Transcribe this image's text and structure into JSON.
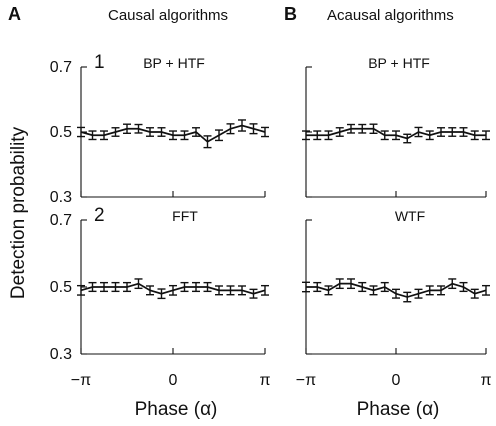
{
  "figure": {
    "column_a_letter": "A",
    "column_a_title": "Causal algorithms",
    "column_b_letter": "B",
    "column_b_title": "Acausal algorithms",
    "ylabel": "Detection probability",
    "xlabel_left": "Phase (α)",
    "xlabel_right": "Phase (α)",
    "row_numbers": [
      "1",
      "2"
    ],
    "y_tick_labels": [
      "0.7",
      "0.5",
      "0.3"
    ],
    "x_tick_labels": [
      "−π",
      "0",
      "π"
    ]
  },
  "chart_data": [
    {
      "type": "line",
      "title": "BP + HTF",
      "panel_number": "1",
      "xlabel": "",
      "ylabel": "Detection probability",
      "x_range": [
        -3.14159,
        3.14159
      ],
      "y_range": [
        0.3,
        0.7
      ],
      "y_ticks": [
        0.3,
        0.5,
        0.7
      ],
      "series": [
        {
          "x": [
            -3.14159,
            -2.74889,
            -2.35619,
            -1.9635,
            -1.5708,
            -1.1781,
            -0.7854,
            -0.3927,
            0,
            0.3927,
            0.7854,
            1.1781,
            1.5708,
            1.9635,
            2.35619,
            2.74889,
            3.14159
          ],
          "y": [
            0.5,
            0.49,
            0.49,
            0.5,
            0.51,
            0.51,
            0.5,
            0.5,
            0.49,
            0.49,
            0.5,
            0.47,
            0.49,
            0.51,
            0.52,
            0.51,
            0.5
          ],
          "error": [
            0.014,
            0.013,
            0.013,
            0.013,
            0.014,
            0.013,
            0.013,
            0.013,
            0.013,
            0.013,
            0.013,
            0.018,
            0.016,
            0.015,
            0.017,
            0.015,
            0.014
          ]
        }
      ]
    },
    {
      "type": "line",
      "title": "FFT",
      "panel_number": "2",
      "xlabel": "Phase (α)",
      "ylabel": "Detection probability",
      "x_range": [
        -3.14159,
        3.14159
      ],
      "y_range": [
        0.3,
        0.7
      ],
      "y_ticks": [
        0.3,
        0.5,
        0.7
      ],
      "series": [
        {
          "x": [
            -3.14159,
            -2.74889,
            -2.35619,
            -1.9635,
            -1.5708,
            -1.1781,
            -0.7854,
            -0.3927,
            0,
            0.3927,
            0.7854,
            1.1781,
            1.5708,
            1.9635,
            2.35619,
            2.74889,
            3.14159
          ],
          "y": [
            0.49,
            0.5,
            0.5,
            0.5,
            0.5,
            0.51,
            0.49,
            0.48,
            0.49,
            0.5,
            0.5,
            0.5,
            0.49,
            0.49,
            0.49,
            0.48,
            0.49
          ],
          "error": [
            0.014,
            0.013,
            0.013,
            0.013,
            0.013,
            0.014,
            0.013,
            0.014,
            0.014,
            0.013,
            0.013,
            0.013,
            0.013,
            0.013,
            0.013,
            0.013,
            0.014
          ]
        }
      ]
    },
    {
      "type": "line",
      "title": "BP + HTF",
      "panel_number": "",
      "xlabel": "",
      "ylabel": "",
      "x_range": [
        -3.14159,
        3.14159
      ],
      "y_range": [
        0.3,
        0.7
      ],
      "y_ticks": [
        0.3,
        0.5,
        0.7
      ],
      "series": [
        {
          "x": [
            -3.14159,
            -2.74889,
            -2.35619,
            -1.9635,
            -1.5708,
            -1.1781,
            -0.7854,
            -0.3927,
            0,
            0.3927,
            0.7854,
            1.1781,
            1.5708,
            1.9635,
            2.35619,
            2.74889,
            3.14159
          ],
          "y": [
            0.49,
            0.49,
            0.49,
            0.5,
            0.51,
            0.51,
            0.51,
            0.49,
            0.49,
            0.48,
            0.5,
            0.49,
            0.5,
            0.5,
            0.5,
            0.49,
            0.49
          ],
          "error": [
            0.013,
            0.013,
            0.013,
            0.013,
            0.013,
            0.013,
            0.014,
            0.013,
            0.013,
            0.013,
            0.014,
            0.013,
            0.013,
            0.013,
            0.013,
            0.013,
            0.013
          ]
        }
      ]
    },
    {
      "type": "line",
      "title": "WTF",
      "panel_number": "",
      "xlabel": "Phase (α)",
      "ylabel": "",
      "x_range": [
        -3.14159,
        3.14159
      ],
      "y_range": [
        0.3,
        0.7
      ],
      "y_ticks": [
        0.3,
        0.5,
        0.7
      ],
      "series": [
        {
          "x": [
            -3.14159,
            -2.74889,
            -2.35619,
            -1.9635,
            -1.5708,
            -1.1781,
            -0.7854,
            -0.3927,
            0,
            0.3927,
            0.7854,
            1.1781,
            1.5708,
            1.9635,
            2.35619,
            2.74889,
            3.14159
          ],
          "y": [
            0.5,
            0.5,
            0.49,
            0.51,
            0.51,
            0.5,
            0.49,
            0.5,
            0.48,
            0.47,
            0.48,
            0.49,
            0.49,
            0.51,
            0.5,
            0.48,
            0.49
          ],
          "error": [
            0.014,
            0.013,
            0.013,
            0.014,
            0.014,
            0.013,
            0.013,
            0.013,
            0.013,
            0.014,
            0.013,
            0.013,
            0.013,
            0.014,
            0.013,
            0.013,
            0.014
          ]
        }
      ]
    }
  ]
}
